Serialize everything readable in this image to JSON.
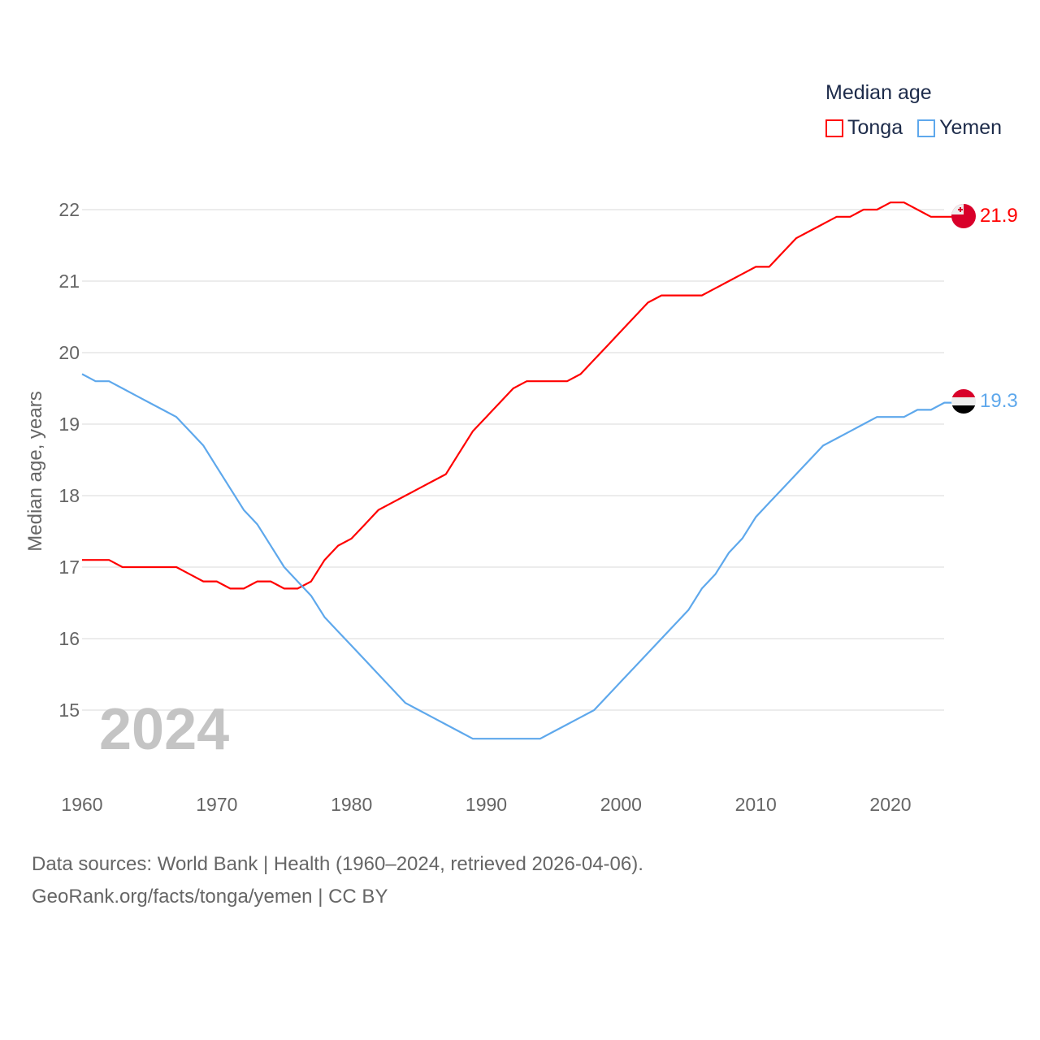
{
  "chart_data": {
    "type": "line",
    "title": "",
    "xlabel": "",
    "ylabel": "Median age, years",
    "xlim": [
      1960,
      2024
    ],
    "ylim": [
      14.2,
      22.4
    ],
    "x_ticks": [
      "1960",
      "1970",
      "1980",
      "1990",
      "2000",
      "2010",
      "2020"
    ],
    "y_ticks": [
      "15",
      "16",
      "17",
      "18",
      "19",
      "20",
      "21",
      "22"
    ],
    "grid": true,
    "legend_title": "Median age",
    "legend_placement": "top-right",
    "year_watermark": "2024",
    "x": [
      1960,
      1961,
      1962,
      1963,
      1964,
      1965,
      1966,
      1967,
      1968,
      1969,
      1970,
      1971,
      1972,
      1973,
      1974,
      1975,
      1976,
      1977,
      1978,
      1979,
      1980,
      1981,
      1982,
      1983,
      1984,
      1985,
      1986,
      1987,
      1988,
      1989,
      1990,
      1991,
      1992,
      1993,
      1994,
      1995,
      1996,
      1997,
      1998,
      1999,
      2000,
      2001,
      2002,
      2003,
      2004,
      2005,
      2006,
      2007,
      2008,
      2009,
      2010,
      2011,
      2012,
      2013,
      2014,
      2015,
      2016,
      2017,
      2018,
      2019,
      2020,
      2021,
      2022,
      2023,
      2024
    ],
    "series": [
      {
        "name": "Tonga",
        "color": "#ff0000",
        "end_label": "21.9",
        "values": [
          17.1,
          17.1,
          17.1,
          17.0,
          17.0,
          17.0,
          17.0,
          17.0,
          16.9,
          16.8,
          16.8,
          16.7,
          16.7,
          16.8,
          16.8,
          16.7,
          16.7,
          16.8,
          17.1,
          17.3,
          17.4,
          17.6,
          17.8,
          17.9,
          18.0,
          18.1,
          18.2,
          18.3,
          18.6,
          18.9,
          19.1,
          19.3,
          19.5,
          19.6,
          19.6,
          19.6,
          19.6,
          19.7,
          19.9,
          20.1,
          20.3,
          20.5,
          20.7,
          20.8,
          20.8,
          20.8,
          20.8,
          20.9,
          21.0,
          21.1,
          21.2,
          21.2,
          21.4,
          21.6,
          21.7,
          21.8,
          21.9,
          21.9,
          22.0,
          22.0,
          22.1,
          22.1,
          22.0,
          21.9,
          21.9
        ]
      },
      {
        "name": "Yemen",
        "color": "#5ea8ec",
        "end_label": "19.3",
        "values": [
          19.7,
          19.6,
          19.6,
          19.5,
          19.4,
          19.3,
          19.2,
          19.1,
          18.9,
          18.7,
          18.4,
          18.1,
          17.8,
          17.6,
          17.3,
          17.0,
          16.8,
          16.6,
          16.3,
          16.1,
          15.9,
          15.7,
          15.5,
          15.3,
          15.1,
          15.0,
          14.9,
          14.8,
          14.7,
          14.6,
          14.6,
          14.6,
          14.6,
          14.6,
          14.6,
          14.7,
          14.8,
          14.9,
          15.0,
          15.2,
          15.4,
          15.6,
          15.8,
          16.0,
          16.2,
          16.4,
          16.7,
          16.9,
          17.2,
          17.4,
          17.7,
          17.9,
          18.1,
          18.3,
          18.5,
          18.7,
          18.8,
          18.9,
          19.0,
          19.1,
          19.1,
          19.1,
          19.2,
          19.2,
          19.3
        ]
      }
    ]
  },
  "source": {
    "line1": "Data sources: World Bank | Health (1960–2024, retrieved 2026-04-06).",
    "line2": "GeoRank.org/facts/tonga/yemen | CC BY"
  }
}
